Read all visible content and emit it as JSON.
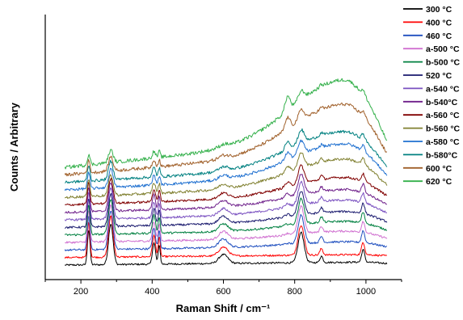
{
  "chart_data": {
    "type": "line",
    "xlabel": "Raman Shift / cm⁻¹",
    "ylabel": "Counts / Arbitrary",
    "xlim": [
      100,
      1100
    ],
    "x_ticks": [
      200,
      400,
      600,
      800,
      1000
    ],
    "x_tick_labels": [
      "200",
      "400",
      "600",
      "800",
      "1000"
    ],
    "y_axis_ticks_visible": false,
    "grid": false,
    "legend_placement": "right",
    "peaks": [
      {
        "x": 222,
        "width": 5,
        "height": 1.0
      },
      {
        "x": 284,
        "width": 9,
        "height": 1.15
      },
      {
        "x": 405,
        "width": 6,
        "height": 0.6
      },
      {
        "x": 420,
        "width": 4,
        "height": 0.55
      },
      {
        "x": 600,
        "width": 18,
        "height": 0.25
      },
      {
        "x": 818,
        "width": 12,
        "height": 0.85
      },
      {
        "x": 875,
        "width": 6,
        "height": 0.18
      },
      {
        "x": 992,
        "width": 6,
        "height": 0.35
      }
    ],
    "series": [
      {
        "name": "300 °C",
        "color": "#000000",
        "offset": 0,
        "peak_scale": 1.0,
        "hump": 0,
        "slope": 0
      },
      {
        "name": "400 °C",
        "color": "#ff0000",
        "offset": 10,
        "peak_scale": 1.0,
        "hump": 0,
        "slope": 0
      },
      {
        "name": "460 °C",
        "color": "#1f4fbf",
        "offset": 20,
        "peak_scale": 0.95,
        "hump": 5,
        "slope": 2
      },
      {
        "name": "a-500 °C",
        "color": "#d070d0",
        "offset": 30,
        "peak_scale": 0.9,
        "hump": 8,
        "slope": 3
      },
      {
        "name": "b-500 °C",
        "color": "#008040",
        "offset": 40,
        "peak_scale": 0.85,
        "hump": 10,
        "slope": 4
      },
      {
        "name": "520 °C",
        "color": "#1a1a6e",
        "offset": 50,
        "peak_scale": 0.8,
        "hump": 12,
        "slope": 5
      },
      {
        "name": "a-540 °C",
        "color": "#7a50c0",
        "offset": 60,
        "peak_scale": 0.75,
        "hump": 16,
        "slope": 6
      },
      {
        "name": "b-540°C",
        "color": "#6e1f8a",
        "offset": 70,
        "peak_scale": 0.7,
        "hump": 18,
        "slope": 8
      },
      {
        "name": "a-560 °C",
        "color": "#800000",
        "offset": 80,
        "peak_scale": 0.6,
        "hump": 22,
        "slope": 10
      },
      {
        "name": "b-560 °C",
        "color": "#808030",
        "offset": 90,
        "peak_scale": 0.5,
        "hump": 32,
        "slope": 14
      },
      {
        "name": "a-580 °C",
        "color": "#1f70d0",
        "offset": 100,
        "peak_scale": 0.45,
        "hump": 38,
        "slope": 18
      },
      {
        "name": "b-580°C",
        "color": "#008080",
        "offset": 110,
        "peak_scale": 0.45,
        "hump": 42,
        "slope": 20
      },
      {
        "name": "600 °C",
        "color": "#a0602a",
        "offset": 120,
        "peak_scale": 0.35,
        "hump": 58,
        "slope": 30
      },
      {
        "name": "620 °C",
        "color": "#33b04a",
        "offset": 130,
        "peak_scale": 0.3,
        "hump": 72,
        "slope": 38
      }
    ]
  }
}
